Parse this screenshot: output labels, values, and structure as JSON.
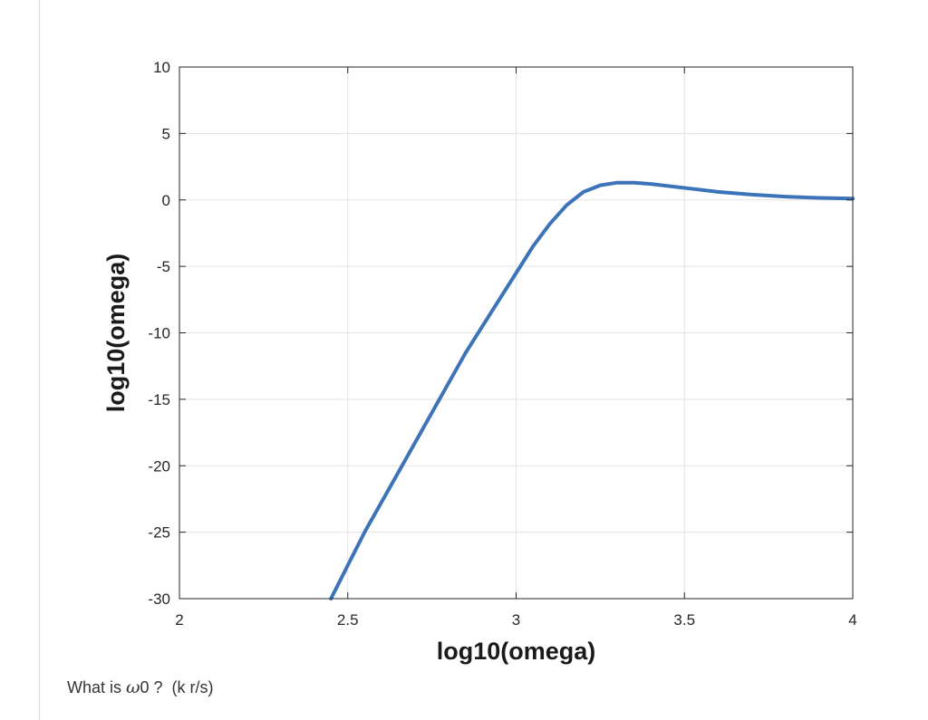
{
  "question": {
    "prefix": "What is ",
    "symbol": "ω",
    "suffix": "0 ?  (k r/s)"
  },
  "colors": {
    "line": "#3d73b8",
    "grid": "#e3e3e3",
    "axis": "#262626"
  },
  "chart_data": {
    "type": "line",
    "title": "",
    "xlabel": "log10(omega)",
    "ylabel": "log10(omega)",
    "xlim": [
      2,
      4
    ],
    "ylim": [
      -30,
      10
    ],
    "xticks": [
      2,
      2.5,
      3,
      3.5,
      4
    ],
    "xtick_labels": [
      "2",
      "2.5",
      "3",
      "3.5",
      "4"
    ],
    "yticks": [
      10,
      5,
      0,
      -5,
      -10,
      -15,
      -20,
      -25,
      -30
    ],
    "ytick_labels": [
      "10",
      "5",
      "0",
      "-5",
      "-10",
      "-15",
      "-20",
      "-25",
      "-30"
    ],
    "grid": true,
    "series": [
      {
        "x": [
          2.45,
          2.55,
          2.65,
          2.75,
          2.85,
          2.95,
          3.0,
          3.05,
          3.1,
          3.15,
          3.2,
          3.25,
          3.3,
          3.35,
          3.4,
          3.5,
          3.6,
          3.7,
          3.8,
          3.9,
          4.0
        ],
        "y": [
          -30.0,
          -25.0,
          -20.5,
          -16.0,
          -11.5,
          -7.5,
          -5.5,
          -3.5,
          -1.8,
          -0.4,
          0.6,
          1.1,
          1.3,
          1.3,
          1.2,
          0.9,
          0.6,
          0.4,
          0.25,
          0.15,
          0.1
        ]
      }
    ]
  }
}
